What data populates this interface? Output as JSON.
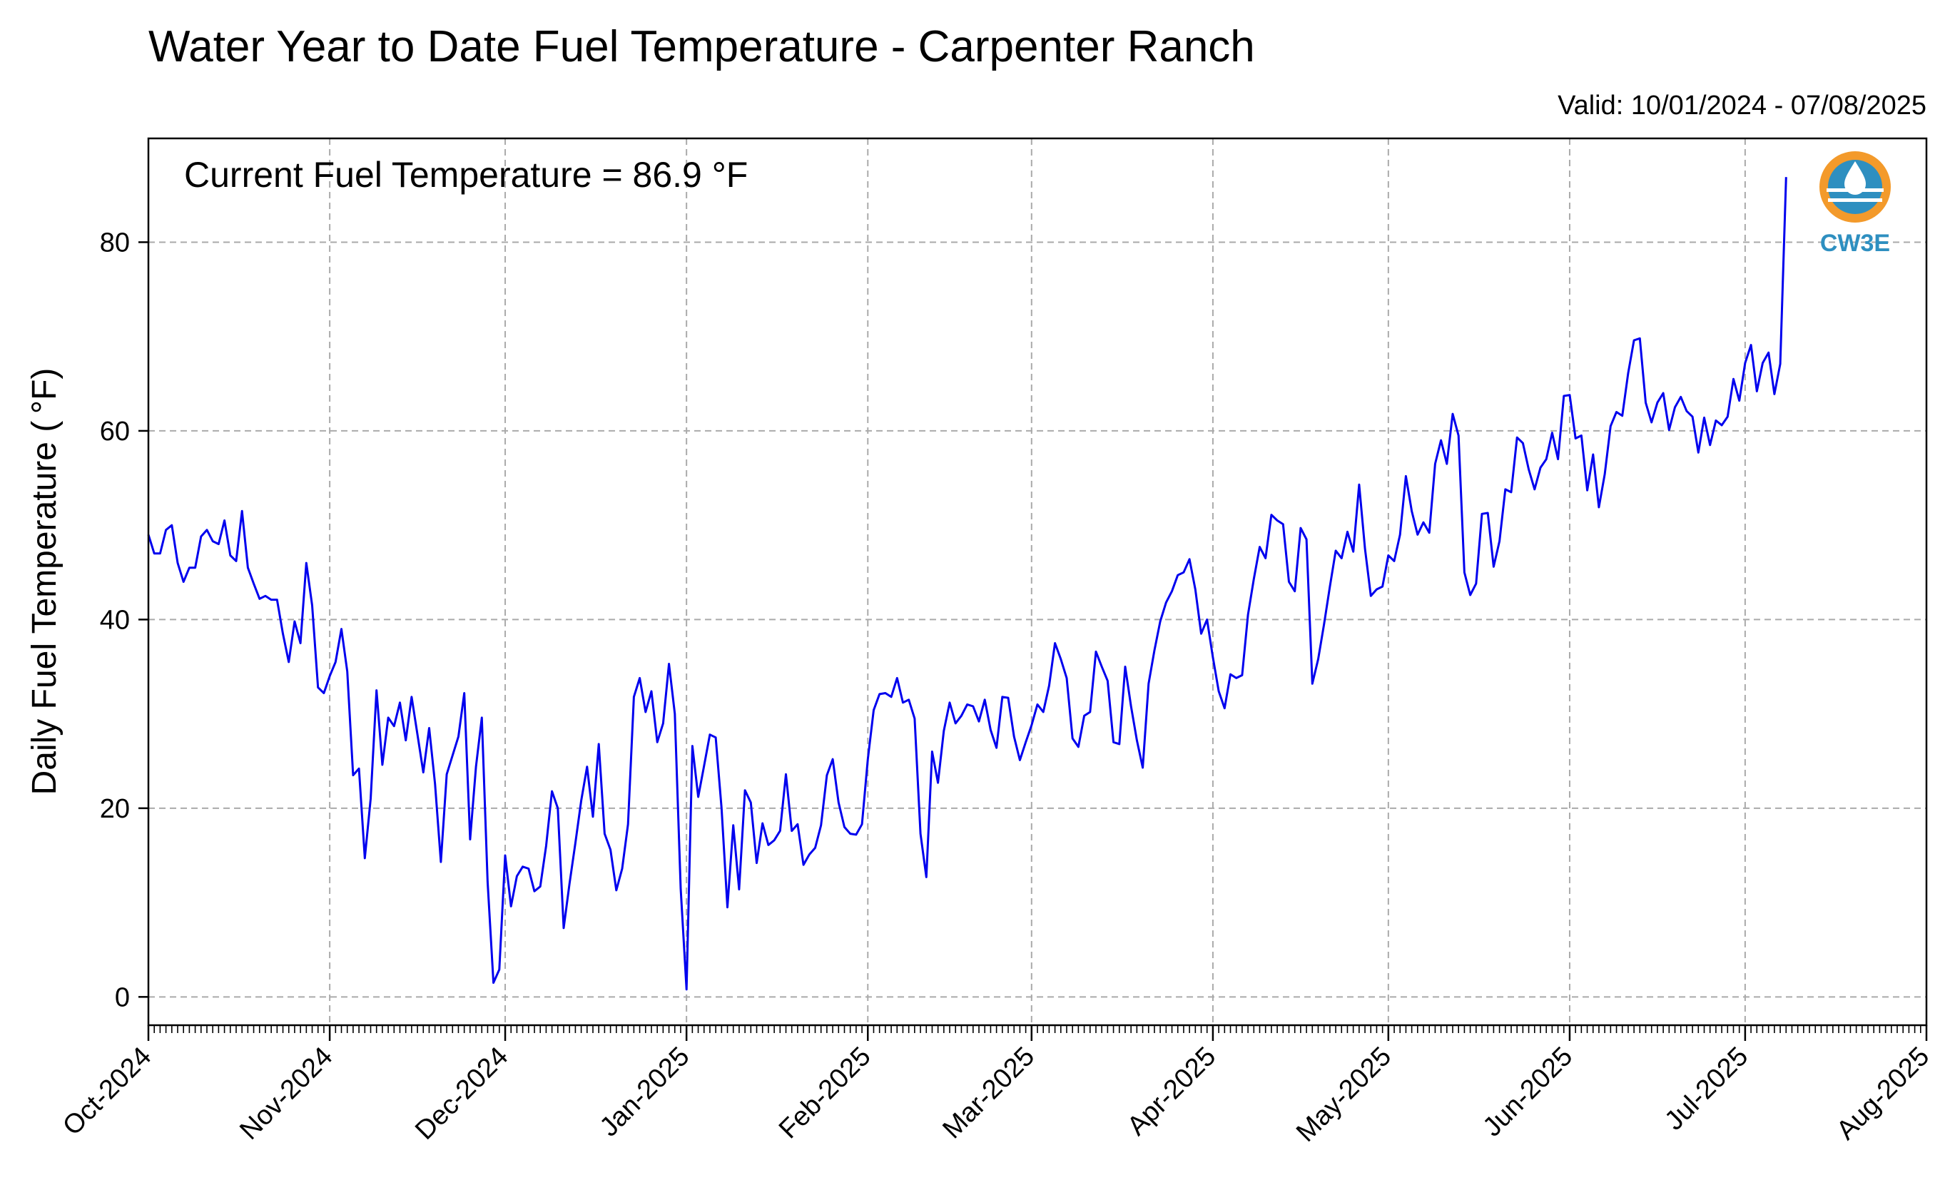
{
  "chart_data": {
    "type": "line",
    "title": "Water Year to Date Fuel Temperature - Carpenter Ranch",
    "subtitle": "Valid: 10/01/2024 - 07/08/2025",
    "ylabel": "Daily Fuel Temperature ( °F)",
    "xlabel": "",
    "annotation": "Current Fuel Temperature = 86.9 °F",
    "logo_text": "CW3E",
    "ylim": [
      -3,
      91
    ],
    "yticks": [
      0,
      20,
      40,
      60,
      80
    ],
    "xlim": [
      "2024-10-01",
      "2025-08-01"
    ],
    "xticks": [
      {
        "date": "2024-10-01",
        "label": "Oct-2024"
      },
      {
        "date": "2024-11-01",
        "label": "Nov-2024"
      },
      {
        "date": "2024-12-01",
        "label": "Dec-2024"
      },
      {
        "date": "2025-01-01",
        "label": "Jan-2025"
      },
      {
        "date": "2025-02-01",
        "label": "Feb-2025"
      },
      {
        "date": "2025-03-01",
        "label": "Mar-2025"
      },
      {
        "date": "2025-04-01",
        "label": "Apr-2025"
      },
      {
        "date": "2025-05-01",
        "label": "May-2025"
      },
      {
        "date": "2025-06-01",
        "label": "Jun-2025"
      },
      {
        "date": "2025-07-01",
        "label": "Jul-2025"
      },
      {
        "date": "2025-08-01",
        "label": "Aug-2025"
      }
    ],
    "grid": true,
    "colors": {
      "line": "#0000ee",
      "grid": "#aaaaaa",
      "logo_orange": "#f39a2b",
      "logo_blue": "#2e8fc0"
    },
    "series": [
      {
        "start_date": "2024-10-01",
        "values": [
          49,
          47,
          47,
          49.5,
          50,
          46,
          44,
          45.5,
          45.5,
          48.8,
          49.5,
          48.3,
          48,
          50.5,
          46.8,
          46.2,
          51.5,
          45.5,
          43.8,
          42.2,
          42.5,
          42.1,
          42.1,
          38.5,
          35.5,
          39.8,
          37.5,
          46,
          41.5,
          32.8,
          32.2,
          34,
          35.5,
          39,
          34.5,
          23.5,
          24.2,
          14.7,
          21,
          32.5,
          24.6,
          29.6,
          28.7,
          31.2,
          27.2,
          31.8,
          27.8,
          23.8,
          28.5,
          22.6,
          14.3,
          23.6,
          25.6,
          27.6,
          32.2,
          16.7,
          24.4,
          29.6,
          12.2,
          1.5,
          2.9,
          15,
          9.6,
          12.8,
          13.8,
          13.6,
          11.2,
          11.7,
          16,
          21.8,
          20,
          7.3,
          12,
          16.3,
          20.8,
          24.4,
          19.1,
          26.8,
          17.3,
          15.6,
          11.3,
          13.6,
          18.3,
          31.8,
          33.8,
          30.2,
          32.4,
          27,
          29,
          35.3,
          30,
          11.5,
          0.8,
          26.6,
          21.2,
          24.5,
          27.8,
          27.5,
          20,
          9.5,
          18.2,
          11.4,
          21.9,
          20.6,
          14.2,
          18.4,
          16.1,
          16.6,
          17.6,
          23.6,
          17.6,
          18.3,
          14,
          15.1,
          15.8,
          18.2,
          23.5,
          25.2,
          20.6,
          18,
          17.3,
          17.2,
          18.3,
          25.2,
          30.4,
          32.1,
          32.2,
          31.8,
          33.8,
          31.2,
          31.5,
          29.5,
          17.3,
          12.7,
          26,
          22.7,
          28.2,
          31.2,
          29,
          29.8,
          31,
          30.8,
          29.2,
          31.5,
          28.3,
          26.4,
          31.8,
          31.7,
          27.6,
          25.1,
          27,
          28.8,
          31,
          30.2,
          33,
          37.5,
          35.8,
          33.8,
          27.4,
          26.5,
          29.8,
          30.2,
          36.6,
          35,
          33.5,
          27,
          26.8,
          35,
          30.8,
          27.2,
          24.3,
          33.2,
          36.7,
          39.8,
          41.8,
          43,
          44.7,
          45,
          46.4,
          43.2,
          38.5,
          40,
          36,
          32.4,
          30.6,
          34.2,
          33.8,
          34.1,
          40.5,
          44.3,
          47.7,
          46.5,
          51.1,
          50.5,
          50.1,
          44,
          43,
          49.7,
          48.5,
          33.2,
          35.8,
          39.5,
          43.5,
          47.3,
          46.5,
          49.3,
          47.2,
          54.3,
          47.5,
          42.5,
          43.2,
          43.5,
          46.8,
          46.2,
          49,
          55.2,
          51.5,
          49,
          50.3,
          49.2,
          56.5,
          59,
          56.5,
          61.8,
          59.5,
          45,
          42.6,
          43.8,
          51.2,
          51.3,
          45.6,
          48.3,
          53.8,
          53.5,
          59.3,
          58.7,
          55.9,
          53.8,
          56.1,
          57,
          59.8,
          57,
          63.7,
          63.8,
          59.2,
          59.5,
          53.7,
          57.5,
          51.9,
          55.4,
          60.5,
          62,
          61.6,
          66.1,
          69.6,
          69.8,
          63,
          60.9,
          63,
          64,
          60.1,
          62.5,
          63.6,
          62.1,
          61.5,
          57.7,
          61.4,
          58.5,
          61.1,
          60.6,
          61.5,
          65.5,
          63.2,
          67.2,
          69.1,
          64.2,
          67.2,
          68.3,
          63.9,
          67.1,
          86.9
        ]
      }
    ]
  }
}
